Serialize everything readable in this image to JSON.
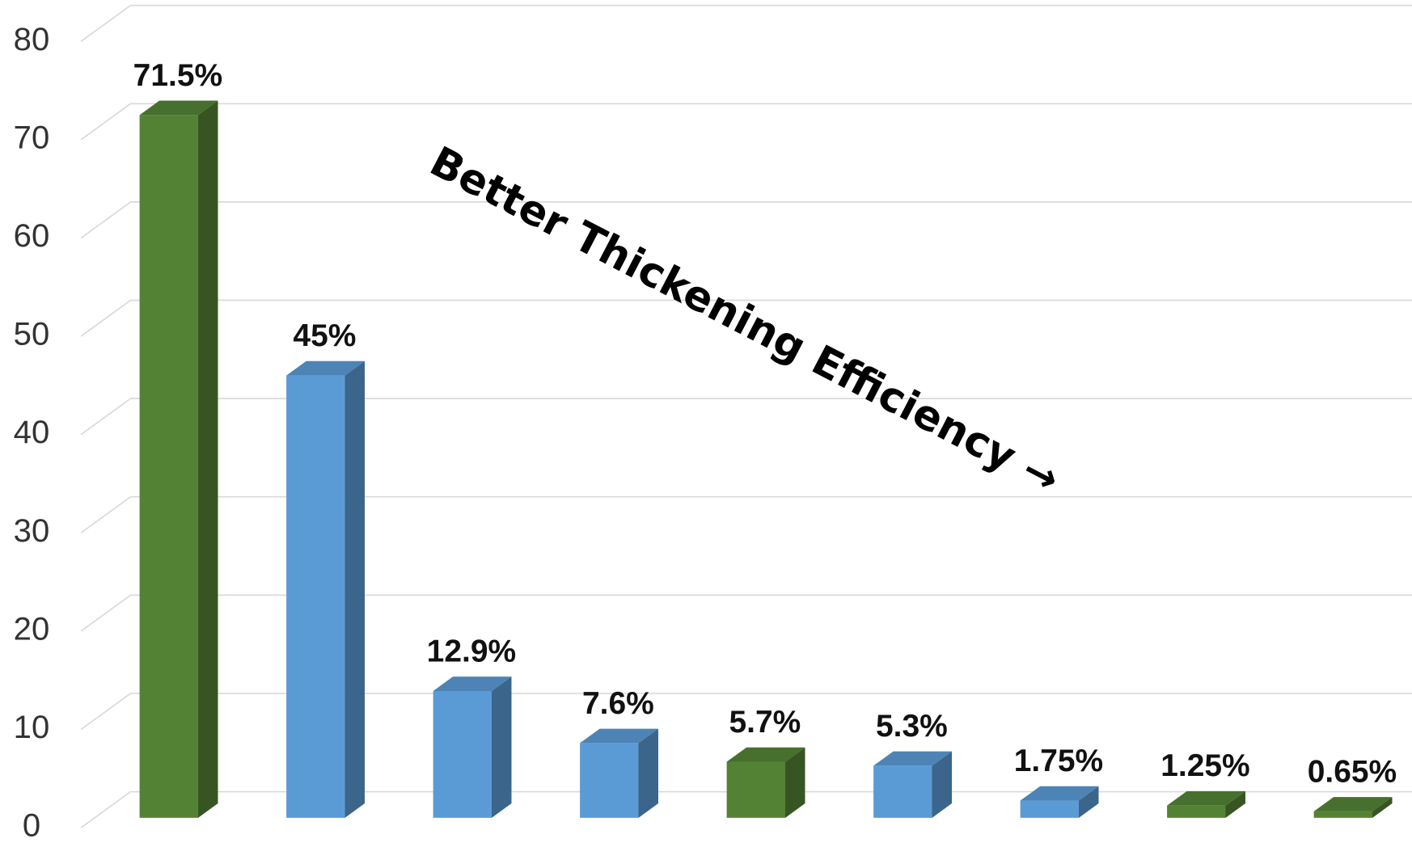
{
  "chart_data": {
    "type": "bar3d",
    "annotation": "Better Thickening Efficiency →",
    "categories": [
      null,
      null,
      null,
      null,
      null,
      null,
      null,
      null,
      null
    ],
    "values": [
      71.5,
      45,
      12.9,
      7.6,
      5.7,
      5.3,
      1.75,
      1.25,
      0.65
    ],
    "value_labels": [
      "71.5%",
      "45%",
      "12.9%",
      "7.6%",
      "5.7%",
      "5.3%",
      "1.75%",
      "1.25%",
      "0.65%"
    ],
    "colors": [
      "#548235",
      "#5b9bd5",
      "#5b9bd5",
      "#5b9bd5",
      "#548235",
      "#5b9bd5",
      "#5b9bd5",
      "#548235",
      "#548235"
    ],
    "ylim": [
      0,
      80
    ],
    "yticks": [
      0,
      10,
      20,
      30,
      40,
      50,
      60,
      70,
      80
    ],
    "grid": true
  }
}
